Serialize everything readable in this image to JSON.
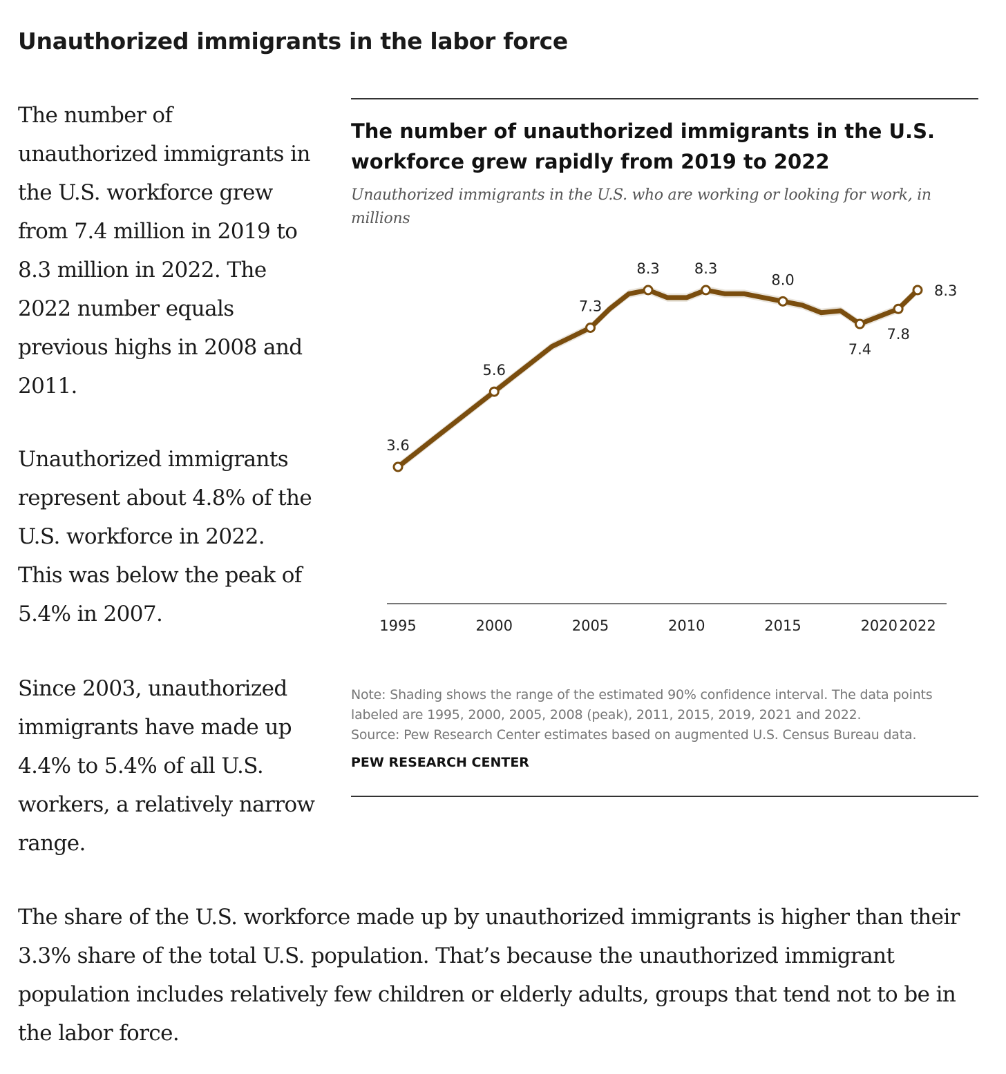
{
  "article": {
    "heading": "Unauthorized immigrants in the labor force",
    "paragraph1": "The number of unauthorized immigrants in the U.S. workforce grew from 7.4 million in 2019 to 8.3 million in 2022. The 2022 number equals previous highs in 2008 and 2011.",
    "paragraph2": "Unauthorized immigrants represent about 4.8% of the U.S. workforce in 2022. This was below the peak of 5.4% in 2007.",
    "paragraph3": "Since 2003, unauthorized immigrants have made up 4.4% to 5.4% of all U.S. workers, a relatively narrow range.",
    "paragraph4": "The share of the U.S. workforce made up by unauthorized immigrants is higher than their 3.3% share of the total U.S. population. That’s because the unauthorized immigrant population includes relatively few children or elderly adults, groups that tend not to be in the labor force."
  },
  "chart_data": {
    "type": "line",
    "title": "The number of unauthorized immigrants in the U.S. workforce grew rapidly from 2019 to 2022",
    "subtitle": "Unauthorized immigrants in the U.S. who are working or looking for work, in millions",
    "xlabel": "",
    "ylabel": "",
    "ylim": [
      0,
      9
    ],
    "x_ticks": [
      "1995",
      "2000",
      "2005",
      "2010",
      "2015",
      "2020",
      "2022"
    ],
    "series": [
      {
        "name": "Unauthorized immigrant workers (millions)",
        "color": "#7a4d0e",
        "band_color": "#e3ddd2",
        "x": [
          1995,
          1996,
          1997,
          1998,
          1999,
          2000,
          2001,
          2002,
          2003,
          2004,
          2005,
          2006,
          2007,
          2008,
          2009,
          2010,
          2011,
          2012,
          2013,
          2014,
          2015,
          2016,
          2017,
          2018,
          2019,
          2020,
          2021,
          2022
        ],
        "values": [
          3.6,
          4.0,
          4.4,
          4.8,
          5.2,
          5.6,
          6.0,
          6.4,
          6.8,
          7.05,
          7.3,
          7.8,
          8.2,
          8.3,
          8.1,
          8.1,
          8.3,
          8.2,
          8.2,
          8.1,
          8.0,
          7.9,
          7.7,
          7.75,
          7.4,
          7.6,
          7.8,
          8.3
        ]
      }
    ],
    "labeled_points": [
      {
        "x": 1995,
        "value": 3.6,
        "label": "3.6",
        "position": "above"
      },
      {
        "x": 2000,
        "value": 5.6,
        "label": "5.6",
        "position": "above"
      },
      {
        "x": 2005,
        "value": 7.3,
        "label": "7.3",
        "position": "above"
      },
      {
        "x": 2008,
        "value": 8.3,
        "label": "8.3",
        "position": "above"
      },
      {
        "x": 2011,
        "value": 8.3,
        "label": "8.3",
        "position": "above"
      },
      {
        "x": 2015,
        "value": 8.0,
        "label": "8.0",
        "position": "above"
      },
      {
        "x": 2019,
        "value": 7.4,
        "label": "7.4",
        "position": "below"
      },
      {
        "x": 2021,
        "value": 7.8,
        "label": "7.8",
        "position": "below"
      },
      {
        "x": 2022,
        "value": 8.3,
        "label": "8.3",
        "position": "right"
      }
    ],
    "note": "Note: Shading shows the range of the estimated 90% confidence interval. The data points labeled are 1995, 2000, 2005, 2008 (peak), 2011, 2015, 2019, 2021 and 2022.",
    "source": "Source: Pew Research Center estimates based on augmented U.S. Census Bureau data.",
    "brand": "PEW RESEARCH CENTER"
  }
}
